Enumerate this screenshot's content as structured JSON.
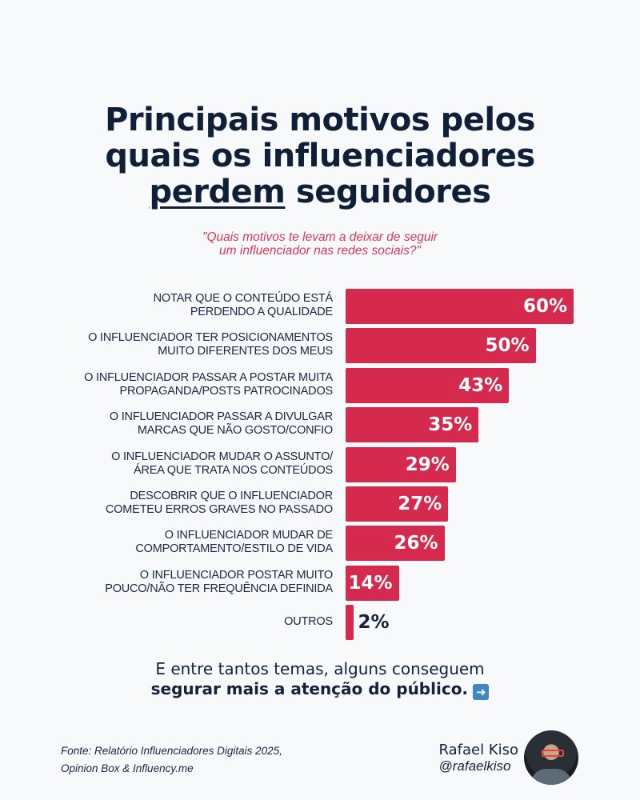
{
  "title": {
    "line1": "Principais motivos pelos",
    "line2": "quais os influenciadores",
    "line3_underlined": "perdem",
    "line3_rest": " seguidores"
  },
  "subtitle": {
    "line1": "\"Quais motivos te levam a deixar de seguir",
    "line2": "um influenciador nas redes sociais?\""
  },
  "chart_data": {
    "type": "bar",
    "orientation": "horizontal",
    "bar_color": "#d52a4d",
    "categories": [
      "NOTAR QUE O CONTEÚDO ESTÁ\nPERDENDO A QUALIDADE",
      "O INFLUENCIADOR TER POSICIONAMENTOS\nMUITO DIFERENTES DOS MEUS",
      "O INFLUENCIADOR PASSAR A POSTAR MUITA\nPROPAGANDA/POSTS PATROCINADOS",
      "O INFLUENCIADOR PASSAR A DIVULGAR\nMARCAS QUE NÃO GOSTO/CONFIO",
      "O INFLUENCIADOR MUDAR O ASSUNTO/\nÁREA QUE TRATA NOS CONTEÚDOS",
      "DESCOBRIR QUE O INFLUENCIADOR\nCOMETEU ERROS GRAVES NO PASSADO",
      "O INFLUENCIADOR MUDAR DE\nCOMPORTAMENTO/ESTILO DE VIDA",
      "O INFLUENCIADOR POSTAR MUITO\nPOUCO/NÃO TER FREQUÊNCIA DEFINIDA",
      "OUTROS"
    ],
    "values": [
      60,
      50,
      43,
      35,
      29,
      27,
      26,
      14,
      2
    ],
    "data_labels": [
      "60%",
      "50%",
      "43%",
      "35%",
      "29%",
      "27%",
      "26%",
      "14%",
      "2%"
    ],
    "unit": "%"
  },
  "cta": {
    "line1": "E entre tantos temas, alguns conseguem",
    "line2": "segurar mais a atenção do público.",
    "icon": "right-arrow-emoji"
  },
  "source": {
    "line1": "Fonte: Relatório Influenciadores Digitais 2025,",
    "line2": "Opinion Box & Influency.me"
  },
  "author": {
    "name": "Rafael Kiso",
    "handle": "@rafaelkiso"
  }
}
